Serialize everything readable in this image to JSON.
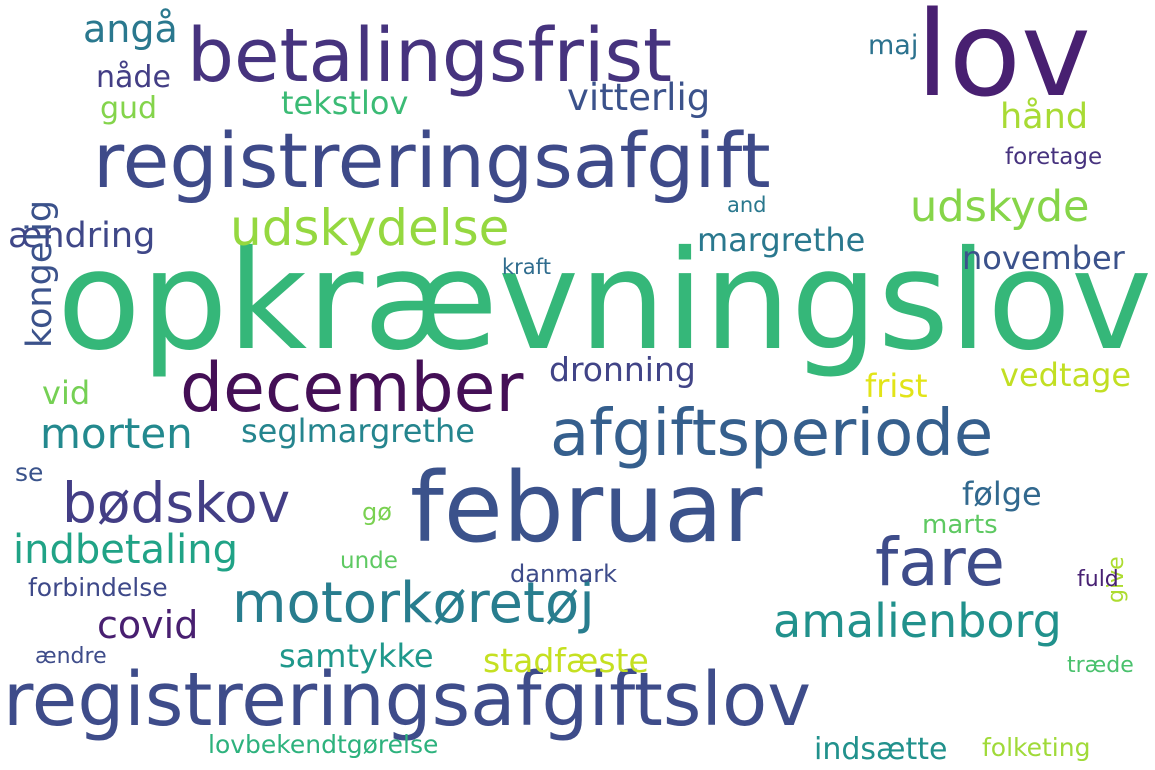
{
  "words": [
    {
      "text": "opkrævningslov",
      "color": "#35b779"
    },
    {
      "text": "lov",
      "color": "#482071"
    },
    {
      "text": "betalingsfrist",
      "color": "#46337e"
    },
    {
      "text": "registreringsafgift",
      "color": "#3e4a89"
    },
    {
      "text": "februar",
      "color": "#3b528b"
    },
    {
      "text": "registreringsafgiftslov",
      "color": "#3e4c8a"
    },
    {
      "text": "afgiftsperiode",
      "color": "#355f8d"
    },
    {
      "text": "december",
      "color": "#440f56"
    },
    {
      "text": "motorkøretøj",
      "color": "#287d8e"
    },
    {
      "text": "bødskov",
      "color": "#433e85"
    },
    {
      "text": "fare",
      "color": "#3e4c8a"
    },
    {
      "text": "udskydelse",
      "color": "#95d840"
    },
    {
      "text": "amalienborg",
      "color": "#21918c"
    },
    {
      "text": "morten",
      "color": "#23898e"
    },
    {
      "text": "indbetaling",
      "color": "#20a386"
    },
    {
      "text": "udskyde",
      "color": "#86d549"
    },
    {
      "text": "seglmargrethe",
      "color": "#25858e"
    },
    {
      "text": "angå",
      "color": "#2a788e"
    },
    {
      "text": "vitterlig",
      "color": "#3b528b"
    },
    {
      "text": "stadfæste",
      "color": "#c5e021"
    },
    {
      "text": "ændring",
      "color": "#3f4788"
    },
    {
      "text": "margrethe",
      "color": "#2a788e"
    },
    {
      "text": "samtykke",
      "color": "#1f988b"
    },
    {
      "text": "dronning",
      "color": "#414487"
    },
    {
      "text": "covid",
      "color": "#481f70"
    },
    {
      "text": "tekstlov",
      "color": "#3bbb75"
    },
    {
      "text": "november",
      "color": "#3b528b"
    },
    {
      "text": "vedtage",
      "color": "#c2df23"
    },
    {
      "text": "frist",
      "color": "#e2e418"
    },
    {
      "text": "følge",
      "color": "#31688e"
    },
    {
      "text": "indsætte",
      "color": "#21918c"
    },
    {
      "text": "folketing",
      "color": "#a0da39"
    },
    {
      "text": "hånd",
      "color": "#a8db34"
    },
    {
      "text": "kongelig",
      "color": "#3b528b"
    },
    {
      "text": "vid",
      "color": "#75d054"
    },
    {
      "text": "nåde",
      "color": "#433e85"
    },
    {
      "text": "gud",
      "color": "#84d44b"
    },
    {
      "text": "maj",
      "color": "#2c728e"
    },
    {
      "text": "marts",
      "color": "#5ec962"
    },
    {
      "text": "forbindelse",
      "color": "#3e4989"
    },
    {
      "text": "lovbekendtgørelse",
      "color": "#2db27d"
    },
    {
      "text": "danmark",
      "color": "#3e4c8a"
    },
    {
      "text": "foretage",
      "color": "#46327e"
    },
    {
      "text": "unde",
      "color": "#5ec962"
    },
    {
      "text": "ændre",
      "color": "#3e4c8a"
    },
    {
      "text": "træde",
      "color": "#4ac16d"
    },
    {
      "text": "give",
      "color": "#addc30"
    },
    {
      "text": "fuld",
      "color": "#482173"
    },
    {
      "text": "se",
      "color": "#3a538b"
    },
    {
      "text": "gø",
      "color": "#7ad151"
    },
    {
      "text": "and",
      "color": "#2a788e"
    },
    {
      "text": "kraft",
      "color": "#2f6c8e"
    }
  ]
}
